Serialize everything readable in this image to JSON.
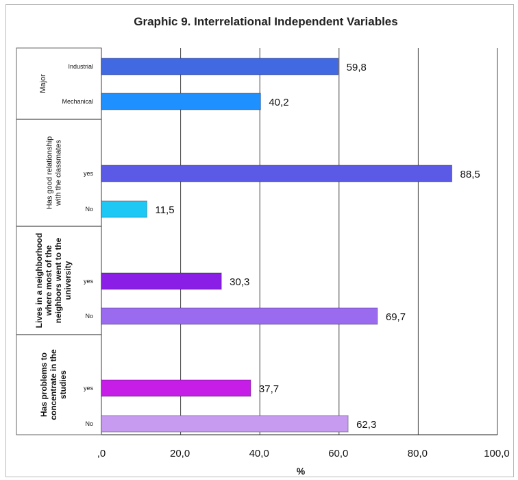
{
  "chart_data": {
    "type": "bar",
    "orientation": "horizontal",
    "title": "Graphic 9. Interrelational Independent Variables",
    "xlabel": "%",
    "xlim": [
      0,
      100
    ],
    "x_ticks": [
      ",0",
      "20,0",
      "40,0",
      "60,0",
      "80,0",
      "100,0"
    ],
    "grid": true,
    "groups": [
      {
        "label": "Major",
        "bold": false,
        "bars": [
          {
            "category": "Industrial",
            "value": 59.8,
            "value_label": "59,8",
            "color": "#4169E1"
          },
          {
            "category": "Mechanical",
            "value": 40.2,
            "value_label": "40,2",
            "color": "#1E90FF"
          }
        ]
      },
      {
        "label": "Has good relationship with the classmates",
        "bold": false,
        "bars": [
          {
            "category": "yes",
            "value": 88.5,
            "value_label": "88,5",
            "color": "#5A5AE6"
          },
          {
            "category": "No",
            "value": 11.5,
            "value_label": "11,5",
            "color": "#1EC8F5"
          }
        ]
      },
      {
        "label": "Lives in a neighborhood where most of the neighbors went to the university",
        "bold": true,
        "bars": [
          {
            "category": "yes",
            "value": 30.3,
            "value_label": "30,3",
            "color": "#8A1EE6"
          },
          {
            "category": "No",
            "value": 69.7,
            "value_label": "69,7",
            "color": "#9B6BEF"
          }
        ]
      },
      {
        "label": "Has problems to concentrate in the studies",
        "bold": true,
        "bars": [
          {
            "category": "yes",
            "value": 37.7,
            "value_label": "37,7",
            "color": "#C61EE6"
          },
          {
            "category": "No",
            "value": 62.3,
            "value_label": "62,3",
            "color": "#C79BF0"
          }
        ]
      }
    ]
  }
}
